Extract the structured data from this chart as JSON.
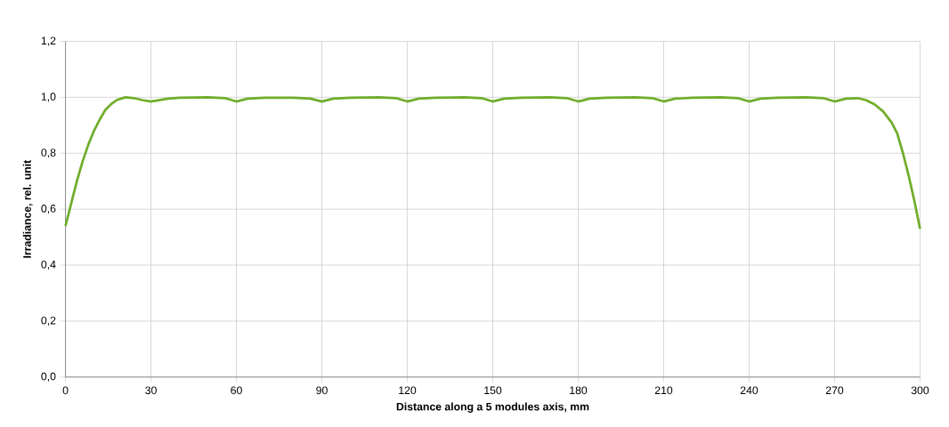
{
  "chart_data": {
    "type": "line",
    "xlabel": "Distance along a 5 modules axis, mm",
    "ylabel": "Irradiance, rel. unit",
    "x": [
      0,
      2,
      4,
      6,
      8,
      10,
      12,
      14,
      16,
      18,
      21,
      24,
      27,
      30,
      33,
      36,
      40,
      50,
      56,
      60,
      64,
      70,
      80,
      86,
      90,
      94,
      100,
      110,
      116,
      120,
      124,
      130,
      140,
      146,
      150,
      154,
      160,
      170,
      176,
      180,
      184,
      190,
      200,
      206,
      210,
      214,
      220,
      230,
      236,
      240,
      244,
      250,
      260,
      266,
      270,
      274,
      278,
      281,
      284,
      287,
      290,
      292,
      294,
      296,
      298,
      300
    ],
    "series": [
      {
        "color": "#70ad2a",
        "values": [
          0.54,
          0.62,
          0.7,
          0.77,
          0.83,
          0.88,
          0.92,
          0.955,
          0.975,
          0.99,
          1.0,
          0.997,
          0.99,
          0.985,
          0.99,
          0.995,
          0.998,
          1.0,
          0.997,
          0.985,
          0.995,
          0.998,
          0.998,
          0.995,
          0.985,
          0.995,
          0.998,
          1.0,
          0.997,
          0.985,
          0.995,
          0.998,
          1.0,
          0.997,
          0.985,
          0.995,
          0.998,
          1.0,
          0.997,
          0.985,
          0.995,
          0.998,
          1.0,
          0.997,
          0.985,
          0.995,
          0.998,
          1.0,
          0.997,
          0.985,
          0.995,
          0.998,
          1.0,
          0.997,
          0.985,
          0.995,
          0.997,
          0.99,
          0.975,
          0.95,
          0.91,
          0.87,
          0.8,
          0.72,
          0.63,
          0.53
        ]
      }
    ],
    "xlim": [
      0,
      300
    ],
    "xticks": [
      0,
      30,
      60,
      90,
      120,
      150,
      180,
      210,
      240,
      270,
      300
    ],
    "ylim": [
      0,
      1.2
    ],
    "yticks": [
      {
        "value": 0,
        "label": "0,0"
      },
      {
        "value": 0.2,
        "label": "0,2"
      },
      {
        "value": 0.4,
        "label": "0,4"
      },
      {
        "value": 0.6,
        "label": "0,6"
      },
      {
        "value": 0.8,
        "label": "0,8"
      },
      {
        "value": 1.0,
        "label": "1,0"
      },
      {
        "value": 1.2,
        "label": "1,2"
      }
    ],
    "grid": true,
    "marker": "none",
    "line_style": "solid"
  }
}
